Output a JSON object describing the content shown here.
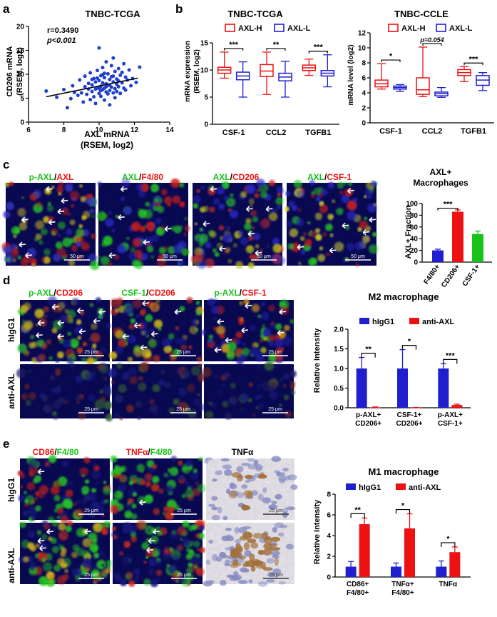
{
  "panels": {
    "a": {
      "letter": "a",
      "title": "TNBC-TCGA",
      "r_text": "r=0.3490",
      "p_text": "p<0.001",
      "ylabel1": "CD206 mRNA",
      "ylabel2": "(RSEM, log2)",
      "xlabel1": "AXL mRNA",
      "xlabel2": "(RSEM, log2)"
    },
    "b": {
      "letter": "b",
      "tcga_title": "TNBC-TCGA",
      "ccle_title": "TNBC-CCLE",
      "tcga_ylabel1": "mRNA expression",
      "tcga_ylabel2": "(RSEM, log2)",
      "ccle_ylabel": "mRNA level (log2)",
      "legend_h": "AXL-H",
      "legend_l": "AXL-L",
      "tcga_sig": [
        "***",
        "**",
        "***"
      ],
      "ccle_sig": [
        "*",
        "p=0.054",
        "***"
      ]
    },
    "c": {
      "letter": "c",
      "img_titles": [
        {
          "g": "p-AXL",
          "s": "/",
          "r": "AXL"
        },
        {
          "g": "AXL",
          "s": "/",
          "r": "F4/80"
        },
        {
          "g": "AXL",
          "s": "/",
          "r": "CD206"
        },
        {
          "g": "AXL",
          "s": "/",
          "r": "CSF-1"
        }
      ],
      "scale": "50 μm",
      "chart_title1": "AXL+",
      "chart_title2": "Macrophages",
      "ylabel": "AXL+ Fraction",
      "sig": "***"
    },
    "d": {
      "letter": "d",
      "img_titles": [
        {
          "g": "p-AXL",
          "s": "/",
          "r": "CD206"
        },
        {
          "g": "CSF-1",
          "s": "/",
          "r": "CD206"
        },
        {
          "g": "p-AXL",
          "s": "/",
          "r": "CSF-1"
        }
      ],
      "row_labels": [
        "hIgG1",
        "anti-AXL"
      ],
      "scale": "25 μm",
      "chart_title": "M2 macrophage",
      "ylabel": "Relative Intensity",
      "legend": [
        "hIgG1",
        "anti-AXL"
      ],
      "sig": [
        "**",
        "*",
        "***"
      ]
    },
    "e": {
      "letter": "e",
      "img_titles": [
        {
          "r": "CD86",
          "s": "/",
          "g": "F4/80"
        },
        {
          "r": "TNFα",
          "s": "/",
          "g": "F4/80"
        },
        {
          "k": "TNFα"
        }
      ],
      "row_labels": [
        "hIgG1",
        "anti-AXL"
      ],
      "scale": "25 μm",
      "chart_title": "M1 macrophage",
      "ylabel": "Relative Intensity",
      "legend": [
        "hIgG1",
        "anti-AXL"
      ],
      "sig": [
        "**",
        "*",
        "*"
      ]
    }
  },
  "colors": {
    "blue": "#1f1fd0",
    "red": "#ee1111",
    "green": "#19c219",
    "dark": "#000000"
  },
  "chart_data": [
    {
      "id": "a",
      "type": "scatter",
      "title": "TNBC-TCGA",
      "xlabel": "AXL mRNA (RSEM, log2)",
      "ylabel": "CD206 mRNA (RSEM, log2)",
      "xlim": [
        6,
        14
      ],
      "ylim": [
        0,
        20
      ],
      "xticks": [
        6,
        8,
        10,
        12,
        14
      ],
      "yticks": [
        0,
        5,
        10,
        15,
        20
      ],
      "fit": {
        "x": [
          7.0,
          12.2
        ],
        "y": [
          5.3,
          9.2
        ]
      },
      "points": [
        [
          7.0,
          6.5
        ],
        [
          7.6,
          5.2
        ],
        [
          8.0,
          6.8
        ],
        [
          8.2,
          3.0
        ],
        [
          8.4,
          4.9
        ],
        [
          8.5,
          7.6
        ],
        [
          8.6,
          6.2
        ],
        [
          8.8,
          5.6
        ],
        [
          8.9,
          8.8
        ],
        [
          9.0,
          6.1
        ],
        [
          9.1,
          4.2
        ],
        [
          9.2,
          7.4
        ],
        [
          9.2,
          9.6
        ],
        [
          9.3,
          5.8
        ],
        [
          9.4,
          6.9
        ],
        [
          9.4,
          8.1
        ],
        [
          9.5,
          4.7
        ],
        [
          9.5,
          10.3
        ],
        [
          9.6,
          6.4
        ],
        [
          9.6,
          7.8
        ],
        [
          9.7,
          5.3
        ],
        [
          9.7,
          9.1
        ],
        [
          9.8,
          6.9
        ],
        [
          9.8,
          8.4
        ],
        [
          9.8,
          3.9
        ],
        [
          9.9,
          7.2
        ],
        [
          9.9,
          10.8
        ],
        [
          10.0,
          6.0
        ],
        [
          10.0,
          8.7
        ],
        [
          10.0,
          15.5
        ],
        [
          10.1,
          7.5
        ],
        [
          10.1,
          5.4
        ],
        [
          10.1,
          9.7
        ],
        [
          10.2,
          6.8
        ],
        [
          10.2,
          8.2
        ],
        [
          10.2,
          11.4
        ],
        [
          10.3,
          7.1
        ],
        [
          10.3,
          4.6
        ],
        [
          10.3,
          9.3
        ],
        [
          10.4,
          6.3
        ],
        [
          10.4,
          8.0
        ],
        [
          10.4,
          12.6
        ],
        [
          10.5,
          7.7
        ],
        [
          10.5,
          5.9
        ],
        [
          10.5,
          10.1
        ],
        [
          10.6,
          6.6
        ],
        [
          10.6,
          8.9
        ],
        [
          10.6,
          3.6
        ],
        [
          10.7,
          7.3
        ],
        [
          10.7,
          9.5
        ],
        [
          10.7,
          11.8
        ],
        [
          10.8,
          6.1
        ],
        [
          10.8,
          8.4
        ],
        [
          10.8,
          13.4
        ],
        [
          10.9,
          7.0
        ],
        [
          10.9,
          10.6
        ],
        [
          10.9,
          5.1
        ],
        [
          11.0,
          7.9
        ],
        [
          11.0,
          9.0
        ],
        [
          11.0,
          6.4
        ],
        [
          11.1,
          8.6
        ],
        [
          11.1,
          11.2
        ],
        [
          11.1,
          7.4
        ],
        [
          11.2,
          9.8
        ],
        [
          11.2,
          6.0
        ],
        [
          11.3,
          8.2
        ],
        [
          11.3,
          10.4
        ],
        [
          11.4,
          7.1
        ],
        [
          11.4,
          12.2
        ],
        [
          11.5,
          9.4
        ],
        [
          11.5,
          6.7
        ],
        [
          11.6,
          8.8
        ],
        [
          11.7,
          10.9
        ],
        [
          11.8,
          7.6
        ],
        [
          11.9,
          9.1
        ],
        [
          12.1,
          8.3
        ],
        [
          12.3,
          11.5
        ],
        [
          10.0,
          7.0
        ],
        [
          9.9,
          9.2
        ],
        [
          10.3,
          10.2
        ],
        [
          10.6,
          7.7
        ],
        [
          10.1,
          6.6
        ],
        [
          10.8,
          9.6
        ],
        [
          9.6,
          8.9
        ],
        [
          10.4,
          7.4
        ],
        [
          10.2,
          9.9
        ]
      ]
    },
    {
      "id": "b-tcga",
      "type": "box",
      "title": "TNBC-TCGA",
      "ylabel": "mRNA expression (RSEM, log2)",
      "categories": [
        "CSF-1",
        "CCL2",
        "TGFB1"
      ],
      "ylim": [
        0,
        15
      ],
      "yticks": [
        0,
        5,
        10,
        15
      ],
      "series": [
        {
          "name": "AXL-H",
          "boxes": [
            [
              8.5,
              9.4,
              10.0,
              10.5,
              13.3
            ],
            [
              5.5,
              8.8,
              9.8,
              11.0,
              13.3
            ],
            [
              9.0,
              9.9,
              10.4,
              10.9,
              12.0
            ]
          ]
        },
        {
          "name": "AXL-L",
          "boxes": [
            [
              5.0,
              8.2,
              8.9,
              9.6,
              11.5
            ],
            [
              5.0,
              8.0,
              8.7,
              9.4,
              11.6
            ],
            [
              6.9,
              8.9,
              9.4,
              9.9,
              12.8
            ]
          ]
        }
      ]
    },
    {
      "id": "b-ccle",
      "type": "box",
      "title": "TNBC-CCLE",
      "ylabel": "mRNA level (log2)",
      "categories": [
        "CSF-1",
        "CCL2",
        "TGFB1"
      ],
      "ylim": [
        0,
        12
      ],
      "yticks": [
        0,
        2,
        4,
        6,
        8,
        10,
        12
      ],
      "series": [
        {
          "name": "AXL-H",
          "boxes": [
            [
              4.5,
              4.8,
              5.2,
              5.7,
              7.9
            ],
            [
              3.5,
              3.8,
              4.4,
              6.0,
              10.1
            ],
            [
              5.5,
              6.3,
              6.7,
              7.1,
              7.5
            ]
          ]
        },
        {
          "name": "AXL-L",
          "boxes": [
            [
              4.2,
              4.5,
              4.7,
              4.9,
              5.1
            ],
            [
              3.4,
              3.6,
              3.9,
              4.1,
              4.7
            ],
            [
              4.3,
              5.0,
              5.7,
              6.3,
              6.7
            ]
          ]
        }
      ]
    },
    {
      "id": "c",
      "type": "bar",
      "title": "AXL+ Macrophages",
      "ylabel": "AXL+ Fraction",
      "categories": [
        "F4/80+",
        "CD206+",
        "CSF-1+"
      ],
      "values": [
        20,
        86,
        48
      ],
      "errors": [
        2,
        3,
        5
      ],
      "colors": [
        "#1f1fd0",
        "#ee1111",
        "#19c219"
      ],
      "ylim": [
        0,
        100
      ],
      "yticks": [
        0,
        20,
        40,
        60,
        80,
        100
      ]
    },
    {
      "id": "d",
      "type": "bar",
      "title": "M2 macrophage",
      "ylabel": "Relative Intensity",
      "categories": [
        [
          "p-AXL+",
          "CD206+"
        ],
        [
          "CSF-1+",
          "CD206+"
        ],
        [
          "p-AXL+",
          "CSF-1+"
        ]
      ],
      "ylim": [
        0,
        2.0
      ],
      "yticks": [
        0.0,
        0.5,
        1.0,
        1.5,
        2.0
      ],
      "series": [
        {
          "name": "hIgG1",
          "values": [
            1.0,
            1.0,
            1.0
          ],
          "errors": [
            0.28,
            0.48,
            0.12
          ]
        },
        {
          "name": "anti-AXL",
          "values": [
            0.01,
            0.005,
            0.07
          ],
          "errors": [
            0.01,
            0.005,
            0.02
          ]
        }
      ]
    },
    {
      "id": "e",
      "type": "bar",
      "title": "M1 macrophage",
      "ylabel": "Relative Intensity",
      "categories": [
        [
          "CD86+",
          "F4/80+"
        ],
        [
          "TNFα+",
          "F4/80+"
        ],
        [
          "TNFα"
        ]
      ],
      "ylim": [
        0,
        8
      ],
      "yticks": [
        0,
        2,
        4,
        6,
        8
      ],
      "series": [
        {
          "name": "hIgG1",
          "values": [
            1.0,
            1.0,
            1.0
          ],
          "errors": [
            0.5,
            0.35,
            0.55
          ]
        },
        {
          "name": "anti-AXL",
          "values": [
            5.1,
            4.7,
            2.4
          ],
          "errors": [
            0.6,
            1.4,
            0.5
          ]
        }
      ]
    }
  ]
}
